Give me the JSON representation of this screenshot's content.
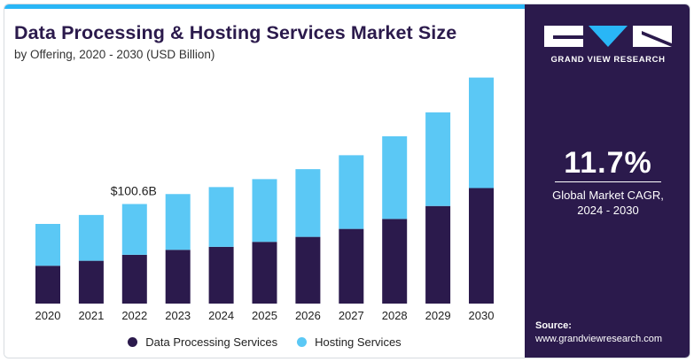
{
  "header": {
    "title": "Data Processing & Hosting Services Market Size",
    "subtitle": "by Offering, 2020 - 2030 (USD Billion)"
  },
  "brand": {
    "name": "GRAND VIEW RESEARCH"
  },
  "stat": {
    "value": "11.7%",
    "label": "Global Market CAGR,\n2024 - 2030"
  },
  "source": {
    "label": "Source:",
    "url": "www.grandviewresearch.com"
  },
  "colors": {
    "data_processing": "#2b1a4c",
    "hosting": "#5bc8f5",
    "accent": "#29b6f6"
  },
  "chart_data": {
    "type": "bar",
    "stacked": true,
    "categories": [
      "2020",
      "2021",
      "2022",
      "2023",
      "2024",
      "2025",
      "2026",
      "2027",
      "2028",
      "2029",
      "2030"
    ],
    "series": [
      {
        "name": "Data Processing Services",
        "values": [
          38,
          43,
          49,
          54,
          57,
          62,
          67,
          75,
          85,
          98,
          116
        ]
      },
      {
        "name": "Hosting Services",
        "values": [
          42,
          46,
          51,
          56,
          60,
          63,
          68,
          74,
          83,
          94,
          111
        ]
      }
    ],
    "annotations": [
      {
        "category": "2022",
        "text": "$100.6B"
      }
    ],
    "legend_position": "bottom",
    "grid": false
  }
}
